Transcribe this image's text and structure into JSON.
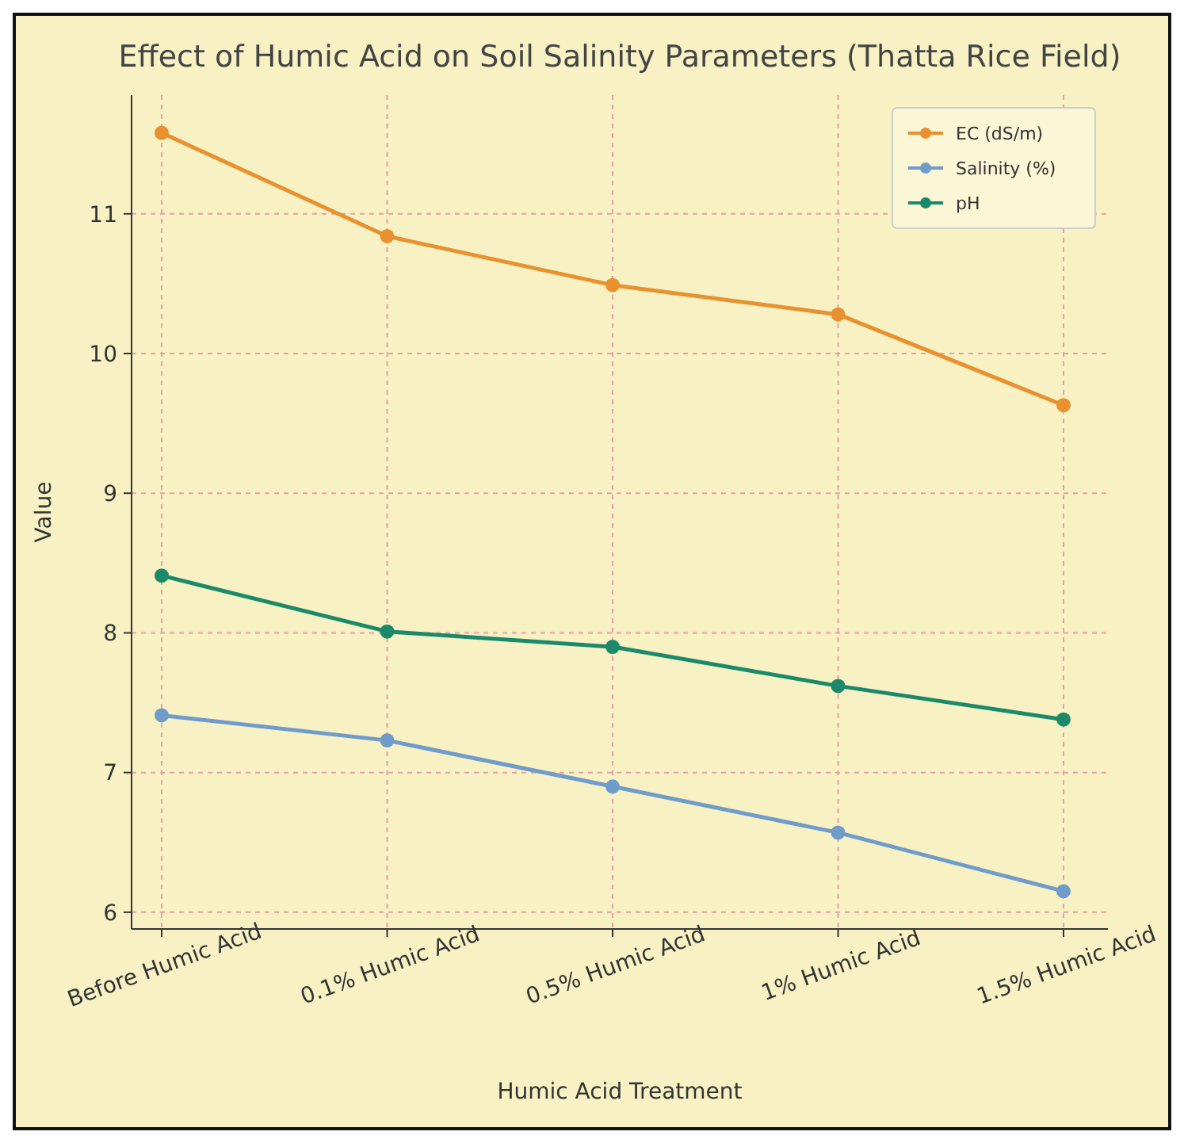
{
  "chart_data": {
    "type": "line",
    "title": "Effect of Humic Acid on Soil Salinity Parameters (Thatta Rice Field)",
    "xlabel": "Humic Acid Treatment",
    "ylabel": "Value",
    "categories": [
      "Before Humic Acid",
      "0.1% Humic Acid",
      "0.5% Humic Acid",
      "1% Humic Acid",
      "1.5% Humic Acid"
    ],
    "series": [
      {
        "name": "EC (dS/m)",
        "color": "#e8912e",
        "values": [
          11.58,
          10.84,
          10.49,
          10.28,
          9.63
        ]
      },
      {
        "name": "Salinity (%)",
        "color": "#6f9ccb",
        "values": [
          7.41,
          7.23,
          6.9,
          6.57,
          6.15
        ]
      },
      {
        "name": "pH",
        "color": "#1b8a6b",
        "values": [
          8.41,
          8.01,
          7.9,
          7.62,
          7.38
        ]
      }
    ],
    "ylim": [
      5.88,
      11.85
    ],
    "yticks": [
      6,
      7,
      8,
      9,
      10,
      11
    ],
    "grid": true,
    "legend": "top right",
    "marker": "circle",
    "line_style": "solid"
  }
}
